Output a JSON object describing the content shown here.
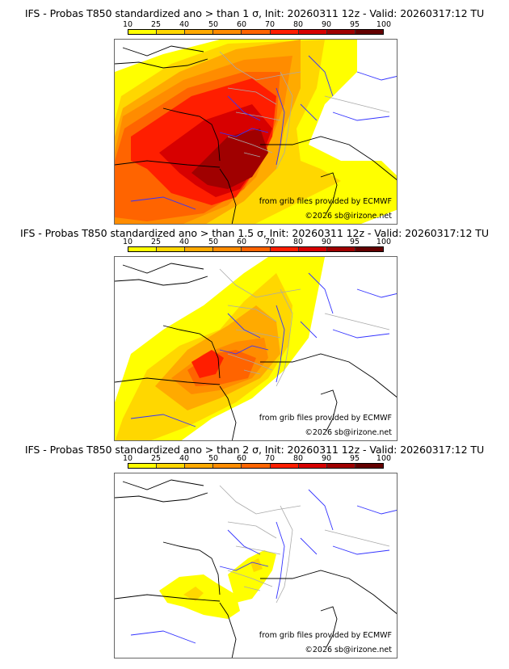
{
  "colorbar": {
    "ticks": [
      "10",
      "25",
      "40",
      "50",
      "60",
      "70",
      "80",
      "90",
      "95",
      "100"
    ],
    "colors": [
      "#ffff00",
      "#ffd700",
      "#ffaa00",
      "#ff8c00",
      "#ff6400",
      "#ff1e00",
      "#d70000",
      "#a00000",
      "#640000"
    ]
  },
  "panels": [
    {
      "title": "IFS - Probas T850  standardized ano > than 1 σ, Init: 20260311 12z - Valid: 20260317:12 TU",
      "threshold_sigma": "1",
      "source_credit": "from grib files provided by ECMWF",
      "copyright": "©2026 sb@irizone.net"
    },
    {
      "title": "IFS - Probas T850  standardized ano > than 1.5 σ, Init: 20260311 12z - Valid: 20260317:12 TU",
      "threshold_sigma": "1.5",
      "source_credit": "from grib files provided by ECMWF",
      "copyright": "©2026 sb@irizone.net"
    },
    {
      "title": "IFS - Probas T850  standardized ano > than 2 σ, Init: 20260311 12z - Valid: 20260317:12 TU",
      "threshold_sigma": "2",
      "source_credit": "from grib files provided by ECMWF",
      "copyright": "©2026 sb@irizone.net"
    }
  ],
  "map": {
    "region": "Western Europe (France, Iberia, Italy)",
    "colors": {
      "coast": "#000000",
      "rivers": "#3333ff",
      "borders": "#aaaaaa"
    }
  }
}
